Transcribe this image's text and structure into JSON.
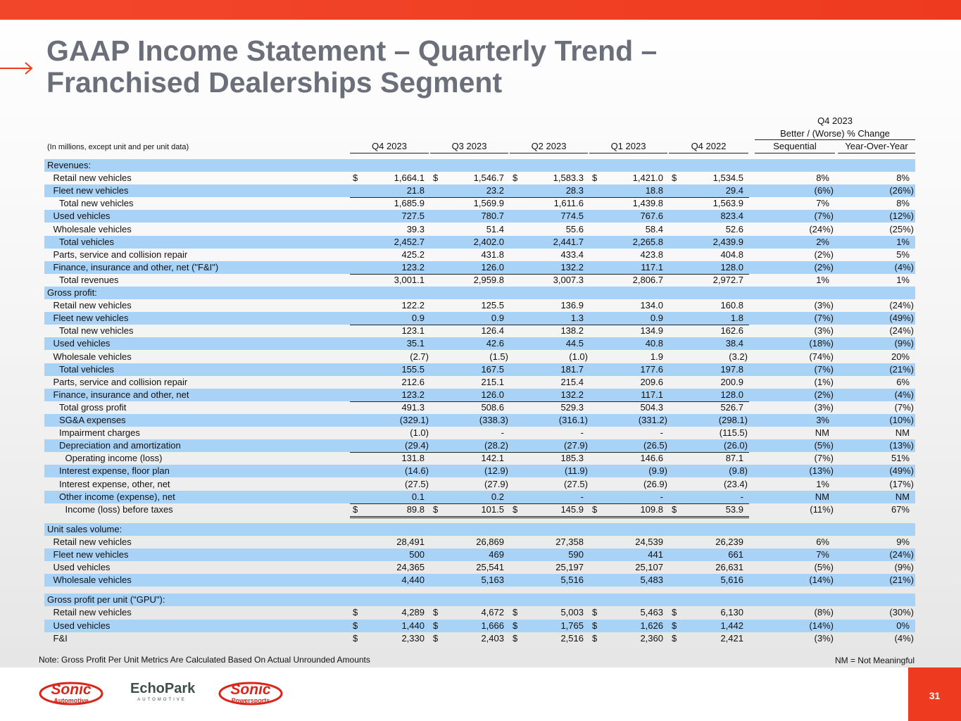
{
  "header": {
    "title_lines": [
      "GAAP Income Statement – Quarterly Trend –",
      "Franchised Dealerships Segment"
    ]
  },
  "table": {
    "units_note": "(In millions, except unit and per unit data)",
    "columns": [
      "Q4 2023",
      "Q3 2023",
      "Q2 2023",
      "Q1 2023",
      "Q4 2022"
    ],
    "change_period": "Q4 2023",
    "change_title": "Better / (Worse) % Change",
    "change_columns": [
      "Sequential",
      "Year-Over-Year"
    ],
    "sections": [
      {
        "heading": "Revenues:",
        "rows": [
          {
            "label": "Retail new vehicles",
            "currency": "$",
            "cells": [
              "1,664.1",
              "1,546.7",
              "1,583.3",
              "1,421.0",
              "1,534.5"
            ],
            "changes": [
              "8%",
              "8%"
            ]
          },
          {
            "label": "Fleet new vehicles",
            "cells": [
              "21.8",
              "23.2",
              "28.3",
              "18.8",
              "29.4"
            ],
            "changes": [
              "(6%)",
              "(26%)"
            ]
          },
          {
            "label": "Total new vehicles",
            "cells": [
              "1,685.9",
              "1,569.9",
              "1,611.6",
              "1,439.8",
              "1,563.9"
            ],
            "changes": [
              "7%",
              "8%"
            ]
          },
          {
            "label": "Used vehicles",
            "cells": [
              "727.5",
              "780.7",
              "774.5",
              "767.6",
              "823.4"
            ],
            "changes": [
              "(7%)",
              "(12%)"
            ]
          },
          {
            "label": "Wholesale vehicles",
            "cells": [
              "39.3",
              "51.4",
              "55.6",
              "58.4",
              "52.6"
            ],
            "changes": [
              "(24%)",
              "(25%)"
            ]
          },
          {
            "label": "Total vehicles",
            "cells": [
              "2,452.7",
              "2,402.0",
              "2,441.7",
              "2,265.8",
              "2,439.9"
            ],
            "changes": [
              "2%",
              "1%"
            ]
          },
          {
            "label": "Parts, service and collision repair",
            "cells": [
              "425.2",
              "431.8",
              "433.4",
              "423.8",
              "404.8"
            ],
            "changes": [
              "(2%)",
              "5%"
            ]
          },
          {
            "label": "Finance, insurance and other, net (\"F&I\")",
            "cells": [
              "123.2",
              "126.0",
              "132.2",
              "117.1",
              "128.0"
            ],
            "changes": [
              "(2%)",
              "(4%)"
            ]
          },
          {
            "label": "Total revenues",
            "cells": [
              "3,001.1",
              "2,959.8",
              "3,007.3",
              "2,806.7",
              "2,972.7"
            ],
            "changes": [
              "1%",
              "1%"
            ]
          }
        ]
      },
      {
        "heading": "Gross profit:",
        "rows": [
          {
            "label": "Retail new vehicles",
            "cells": [
              "122.2",
              "125.5",
              "136.9",
              "134.0",
              "160.8"
            ],
            "changes": [
              "(3%)",
              "(24%)"
            ]
          },
          {
            "label": "Fleet new vehicles",
            "cells": [
              "0.9",
              "0.9",
              "1.3",
              "0.9",
              "1.8"
            ],
            "changes": [
              "(7%)",
              "(49%)"
            ]
          },
          {
            "label": "Total new vehicles",
            "cells": [
              "123.1",
              "126.4",
              "138.2",
              "134.9",
              "162.6"
            ],
            "changes": [
              "(3%)",
              "(24%)"
            ]
          },
          {
            "label": "Used vehicles",
            "cells": [
              "35.1",
              "42.6",
              "44.5",
              "40.8",
              "38.4"
            ],
            "changes": [
              "(18%)",
              "(9%)"
            ]
          },
          {
            "label": "Wholesale vehicles",
            "cells": [
              "(2.7)",
              "(1.5)",
              "(1.0)",
              "1.9",
              "(3.2)"
            ],
            "changes": [
              "(74%)",
              "20%"
            ]
          },
          {
            "label": "Total vehicles",
            "cells": [
              "155.5",
              "167.5",
              "181.7",
              "177.6",
              "197.8"
            ],
            "changes": [
              "(7%)",
              "(21%)"
            ]
          },
          {
            "label": "Parts, service and collision repair",
            "cells": [
              "212.6",
              "215.1",
              "215.4",
              "209.6",
              "200.9"
            ],
            "changes": [
              "(1%)",
              "6%"
            ]
          },
          {
            "label": "Finance, insurance and other, net",
            "cells": [
              "123.2",
              "126.0",
              "132.2",
              "117.1",
              "128.0"
            ],
            "changes": [
              "(2%)",
              "(4%)"
            ]
          },
          {
            "label": "Total gross profit",
            "cells": [
              "491.3",
              "508.6",
              "529.3",
              "504.3",
              "526.7"
            ],
            "changes": [
              "(3%)",
              "(7%)"
            ]
          },
          {
            "label": "SG&A expenses",
            "cells": [
              "(329.1)",
              "(338.3)",
              "(316.1)",
              "(331.2)",
              "(298.1)"
            ],
            "changes": [
              "3%",
              "(10%)"
            ]
          },
          {
            "label": "Impairment charges",
            "cells": [
              "(1.0)",
              "-",
              "-",
              "-",
              "(115.5)"
            ],
            "changes": [
              "NM",
              "NM"
            ]
          },
          {
            "label": "Depreciation and amortization",
            "cells": [
              "(29.4)",
              "(28.2)",
              "(27.9)",
              "(26.5)",
              "(26.0)"
            ],
            "changes": [
              "(5%)",
              "(13%)"
            ]
          },
          {
            "label": "Operating income (loss)",
            "cells": [
              "131.8",
              "142.1",
              "185.3",
              "146.6",
              "87.1"
            ],
            "changes": [
              "(7%)",
              "51%"
            ]
          },
          {
            "label": "Interest expense, floor plan",
            "cells": [
              "(14.6)",
              "(12.9)",
              "(11.9)",
              "(9.9)",
              "(9.8)"
            ],
            "changes": [
              "(13%)",
              "(49%)"
            ]
          },
          {
            "label": "Interest expense, other, net",
            "cells": [
              "(27.5)",
              "(27.9)",
              "(27.5)",
              "(26.9)",
              "(23.4)"
            ],
            "changes": [
              "1%",
              "(17%)"
            ]
          },
          {
            "label": "Other income (expense), net",
            "cells": [
              "0.1",
              "0.2",
              "-",
              "-",
              "-"
            ],
            "changes": [
              "NM",
              "NM"
            ]
          },
          {
            "label": "Income (loss) before taxes",
            "currency": "$",
            "cells": [
              "89.8",
              "101.5",
              "145.9",
              "109.8",
              "53.9"
            ],
            "changes": [
              "(11%)",
              "67%"
            ]
          }
        ]
      },
      {
        "heading": "Unit sales volume:",
        "rows": [
          {
            "label": "Retail new vehicles",
            "cells": [
              "28,491",
              "26,869",
              "27,358",
              "24,539",
              "26,239"
            ],
            "changes": [
              "6%",
              "9%"
            ]
          },
          {
            "label": "Fleet new vehicles",
            "cells": [
              "500",
              "469",
              "590",
              "441",
              "661"
            ],
            "changes": [
              "7%",
              "(24%)"
            ]
          },
          {
            "label": "Used vehicles",
            "cells": [
              "24,365",
              "25,541",
              "25,197",
              "25,107",
              "26,631"
            ],
            "changes": [
              "(5%)",
              "(9%)"
            ]
          },
          {
            "label": "Wholesale vehicles",
            "cells": [
              "4,440",
              "5,163",
              "5,516",
              "5,483",
              "5,616"
            ],
            "changes": [
              "(14%)",
              "(21%)"
            ]
          }
        ]
      },
      {
        "heading": "Gross profit per unit (\"GPU\"):",
        "rows": [
          {
            "label": "Retail new vehicles",
            "currency": "$",
            "cells": [
              "4,289",
              "4,672",
              "5,003",
              "5,463",
              "6,130"
            ],
            "changes": [
              "(8%)",
              "(30%)"
            ]
          },
          {
            "label": "Used vehicles",
            "currency": "$",
            "cells": [
              "1,440",
              "1,666",
              "1,765",
              "1,626",
              "1,442"
            ],
            "changes": [
              "(14%)",
              "0%"
            ]
          },
          {
            "label": "F&I",
            "currency": "$",
            "cells": [
              "2,330",
              "2,403",
              "2,516",
              "2,360",
              "2,421"
            ],
            "changes": [
              "(3%)",
              "(4%)"
            ]
          }
        ]
      }
    ]
  },
  "footer": {
    "note": "Note: Gross Profit Per Unit Metrics Are Calculated Based On Actual Unrounded Amounts",
    "legend": "NM = Not Meaningful",
    "page_number": "31",
    "logos": [
      {
        "name": "Sonic",
        "sub": "Automotive"
      },
      {
        "name": "EchoPark",
        "sub": "AUTOMOTIVE"
      },
      {
        "name": "Sonic",
        "sub": "Powersports"
      }
    ]
  }
}
